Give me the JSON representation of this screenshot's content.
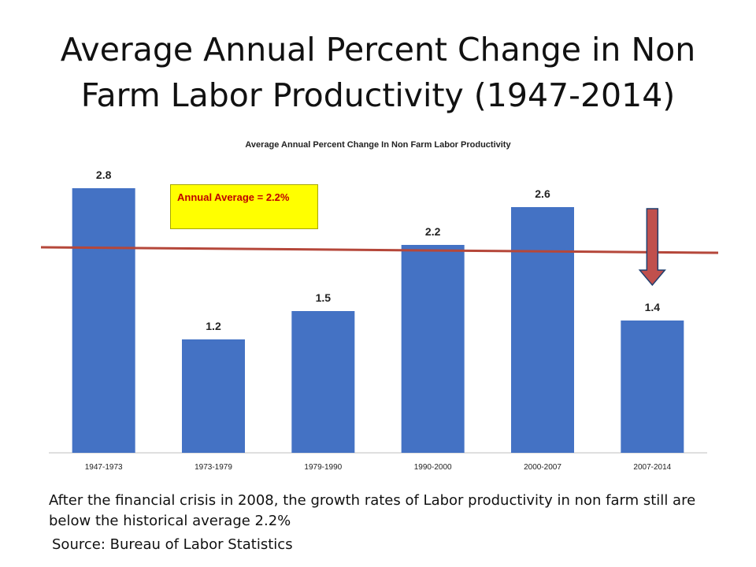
{
  "slide": {
    "title": "Average Annual Percent Change in Non Farm Labor Productivity (1947-2014)",
    "caption": "After the financial crisis in 2008, the growth rates of Labor productivity in non farm still are below the historical average 2.2%",
    "source": "Source: Bureau of Labor Statistics"
  },
  "annotation": {
    "text": "Annual Average = 2.2%"
  },
  "chart_data": {
    "type": "bar",
    "title": "Average Annual Percent Change In Non Farm Labor Productivity",
    "categories": [
      "1947-1973",
      "1973-1979",
      "1979-1990",
      "1990-2000",
      "2000-2007",
      "2007-2014"
    ],
    "values": [
      2.8,
      1.2,
      1.5,
      2.2,
      2.6,
      1.4
    ],
    "value_labels": [
      "2.8",
      "1.2",
      "1.5",
      "2.2",
      "2.6",
      "1.4"
    ],
    "reference_line": {
      "value": 2.2,
      "label": "Annual Average = 2.2%"
    },
    "xlabel": "",
    "ylabel": "",
    "ylim": [
      0,
      3.0
    ],
    "grid": false,
    "legend": "none",
    "arrow_on_category": "2007-2014",
    "colors": {
      "bar": "#4472c4",
      "reference_line": "#b5473a",
      "arrow_fill": "#c0504d",
      "arrow_stroke": "#1f3f6f",
      "annotation_bg": "#ffff00",
      "annotation_text": "#c00000"
    }
  }
}
